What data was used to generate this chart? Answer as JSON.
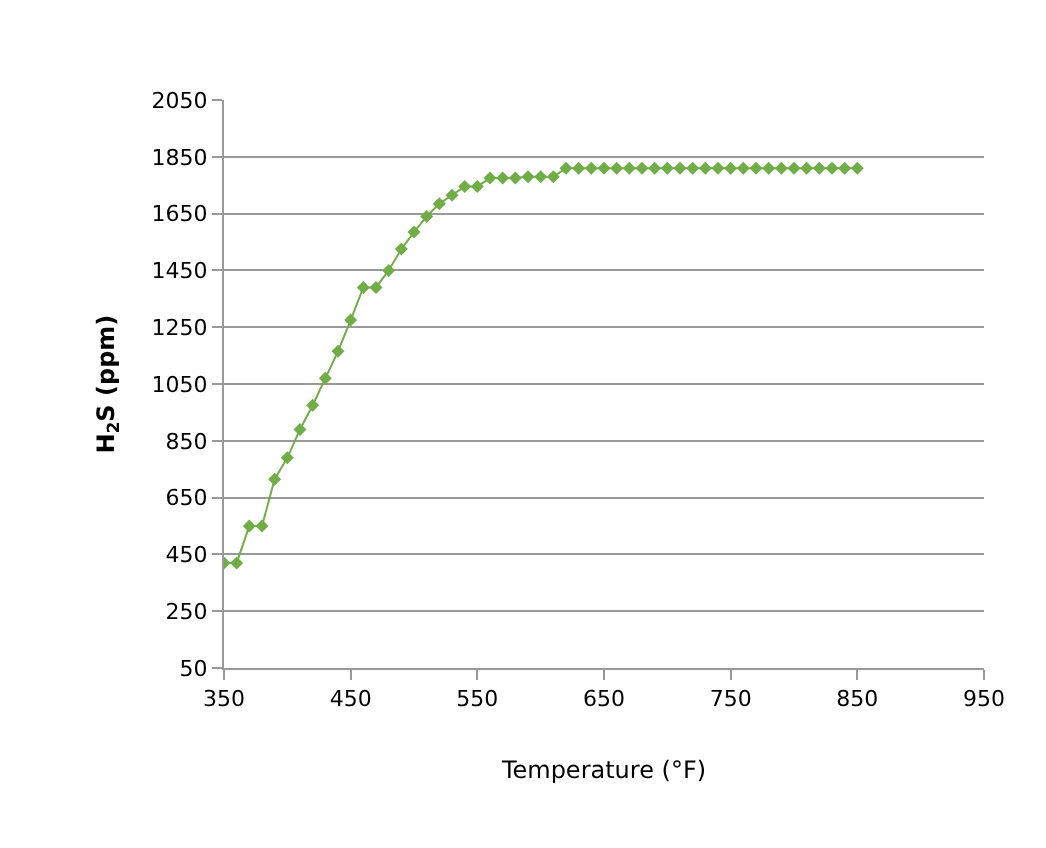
{
  "chart_data": {
    "type": "line",
    "xlabel": "Temperature (°F)",
    "ylabel": "H$_{2}$S (ppm)",
    "x": [
      350,
      360,
      370,
      380,
      390,
      400,
      410,
      420,
      430,
      440,
      450,
      460,
      470,
      480,
      490,
      500,
      510,
      520,
      530,
      540,
      550,
      560,
      570,
      580,
      590,
      600,
      610,
      620,
      630,
      640,
      650,
      660,
      670,
      680,
      690,
      700,
      710,
      720,
      730,
      740,
      750,
      760,
      770,
      780,
      790,
      800,
      810,
      820,
      830,
      840,
      850
    ],
    "series": [
      {
        "color": "#70ad47",
        "values": [
          420,
          420,
          550,
          550,
          715,
          790,
          890,
          975,
          1070,
          1165,
          1275,
          1390,
          1390,
          1450,
          1525,
          1585,
          1640,
          1685,
          1715,
          1745,
          1745,
          1775,
          1775,
          1775,
          1780,
          1780,
          1780,
          1810,
          1810,
          1810,
          1810,
          1810,
          1810,
          1810,
          1810,
          1810,
          1810,
          1810,
          1810,
          1810,
          1810,
          1810,
          1810,
          1810,
          1810,
          1810,
          1810,
          1810,
          1810,
          1810,
          1810
        ]
      }
    ],
    "xlim": [
      350,
      950
    ],
    "xticks": [
      350,
      450,
      550,
      650,
      750,
      850,
      950
    ],
    "ylim": [
      50,
      2050
    ],
    "yticks": [
      50,
      250,
      450,
      650,
      850,
      1050,
      1250,
      1450,
      1650,
      1850,
      2050
    ],
    "grid": "y",
    "marker": "diamond",
    "line_style": "solid"
  }
}
